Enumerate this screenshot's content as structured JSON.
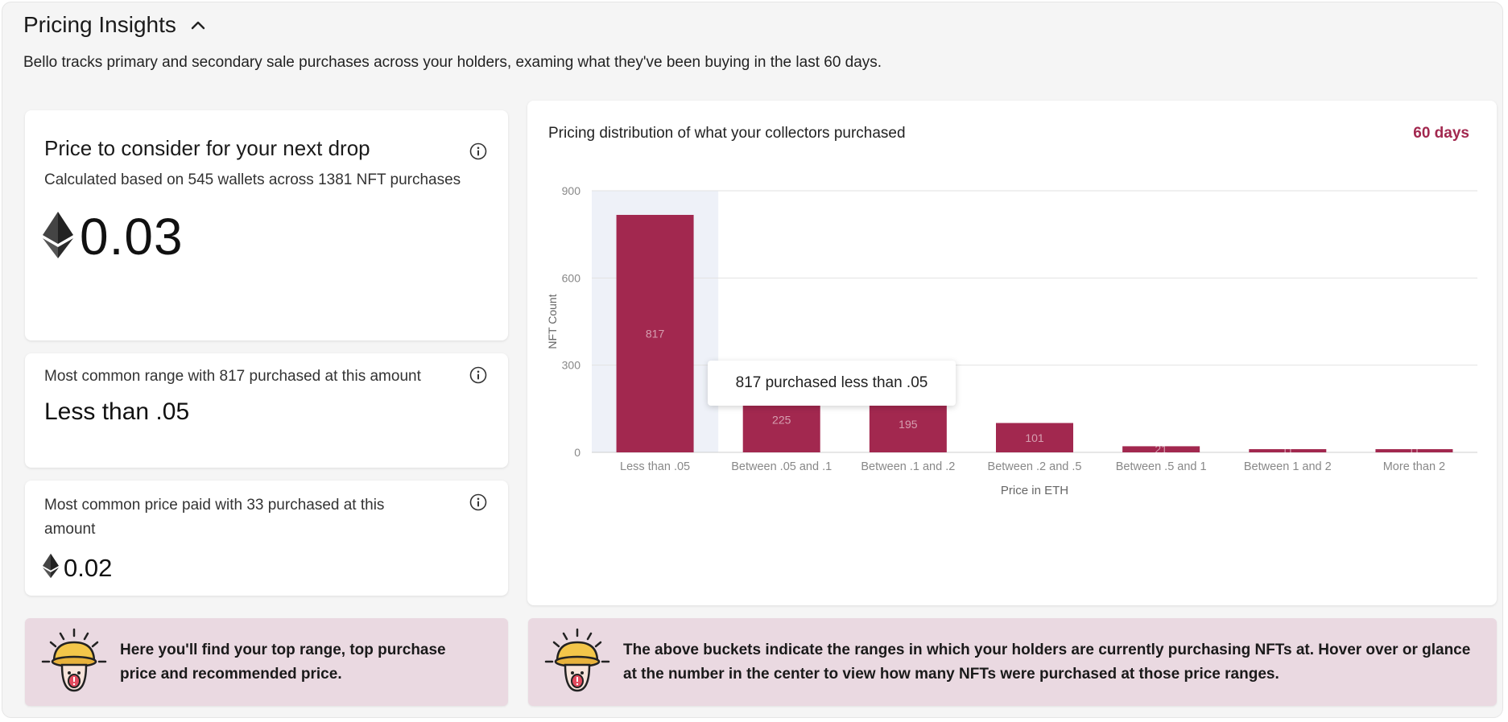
{
  "header": {
    "title": "Pricing Insights",
    "subtitle": "Bello tracks primary and secondary sale purchases across your holders, examing what they've been buying in the last 60 days."
  },
  "recommended": {
    "heading": "Price to consider for your next drop",
    "subtext": "Calculated based on 545 wallets across 1381 NFT purchases",
    "price": "0.03"
  },
  "common_range": {
    "subtext": "Most common range with 817 purchased at this amount",
    "value": "Less than .05"
  },
  "common_price": {
    "subtext": "Most common price paid with 33 purchased at this amount",
    "value": "0.02"
  },
  "chart": {
    "title": "Pricing distribution of what your collectors purchased",
    "range_label": "60 days",
    "tooltip": "817 purchased less than .05"
  },
  "chart_data": {
    "type": "bar",
    "categories": [
      "Less than .05",
      "Between .05 and .1",
      "Between .1 and .2",
      "Between .2 and .5",
      "Between .5 and 1",
      "Between 1 and 2",
      "More than 2"
    ],
    "values": [
      817,
      225,
      195,
      101,
      21,
      11,
      11
    ],
    "data_labels": [
      "817",
      "225",
      "195",
      "101",
      "21",
      "11",
      "11"
    ],
    "xlabel": "Price in ETH",
    "ylabel": "NFT Count",
    "ylim": [
      0,
      900
    ],
    "yticks": [
      0,
      300,
      600,
      900
    ],
    "highlighted_category": "Less than .05",
    "grid": true,
    "bar_color": "#a2284f",
    "highlight_color": "#eef1f8"
  },
  "tips": {
    "left": "Here you'll find your top range, top purchase price and recommended price.",
    "right": "The above buckets indicate the ranges in which your holders are currently purchasing NFTs at. Hover over or glance at the number in the center to view how many NFTs were purchased at those price ranges."
  },
  "icons": {
    "collapse": "chevron-up-icon",
    "info": "info-icon",
    "currency": "ethereum-icon",
    "mascot": "mushroom-mascot-icon"
  },
  "colors": {
    "accent": "#a2284f",
    "banner": "#ead9e1",
    "panel": "#f5f5f5"
  }
}
